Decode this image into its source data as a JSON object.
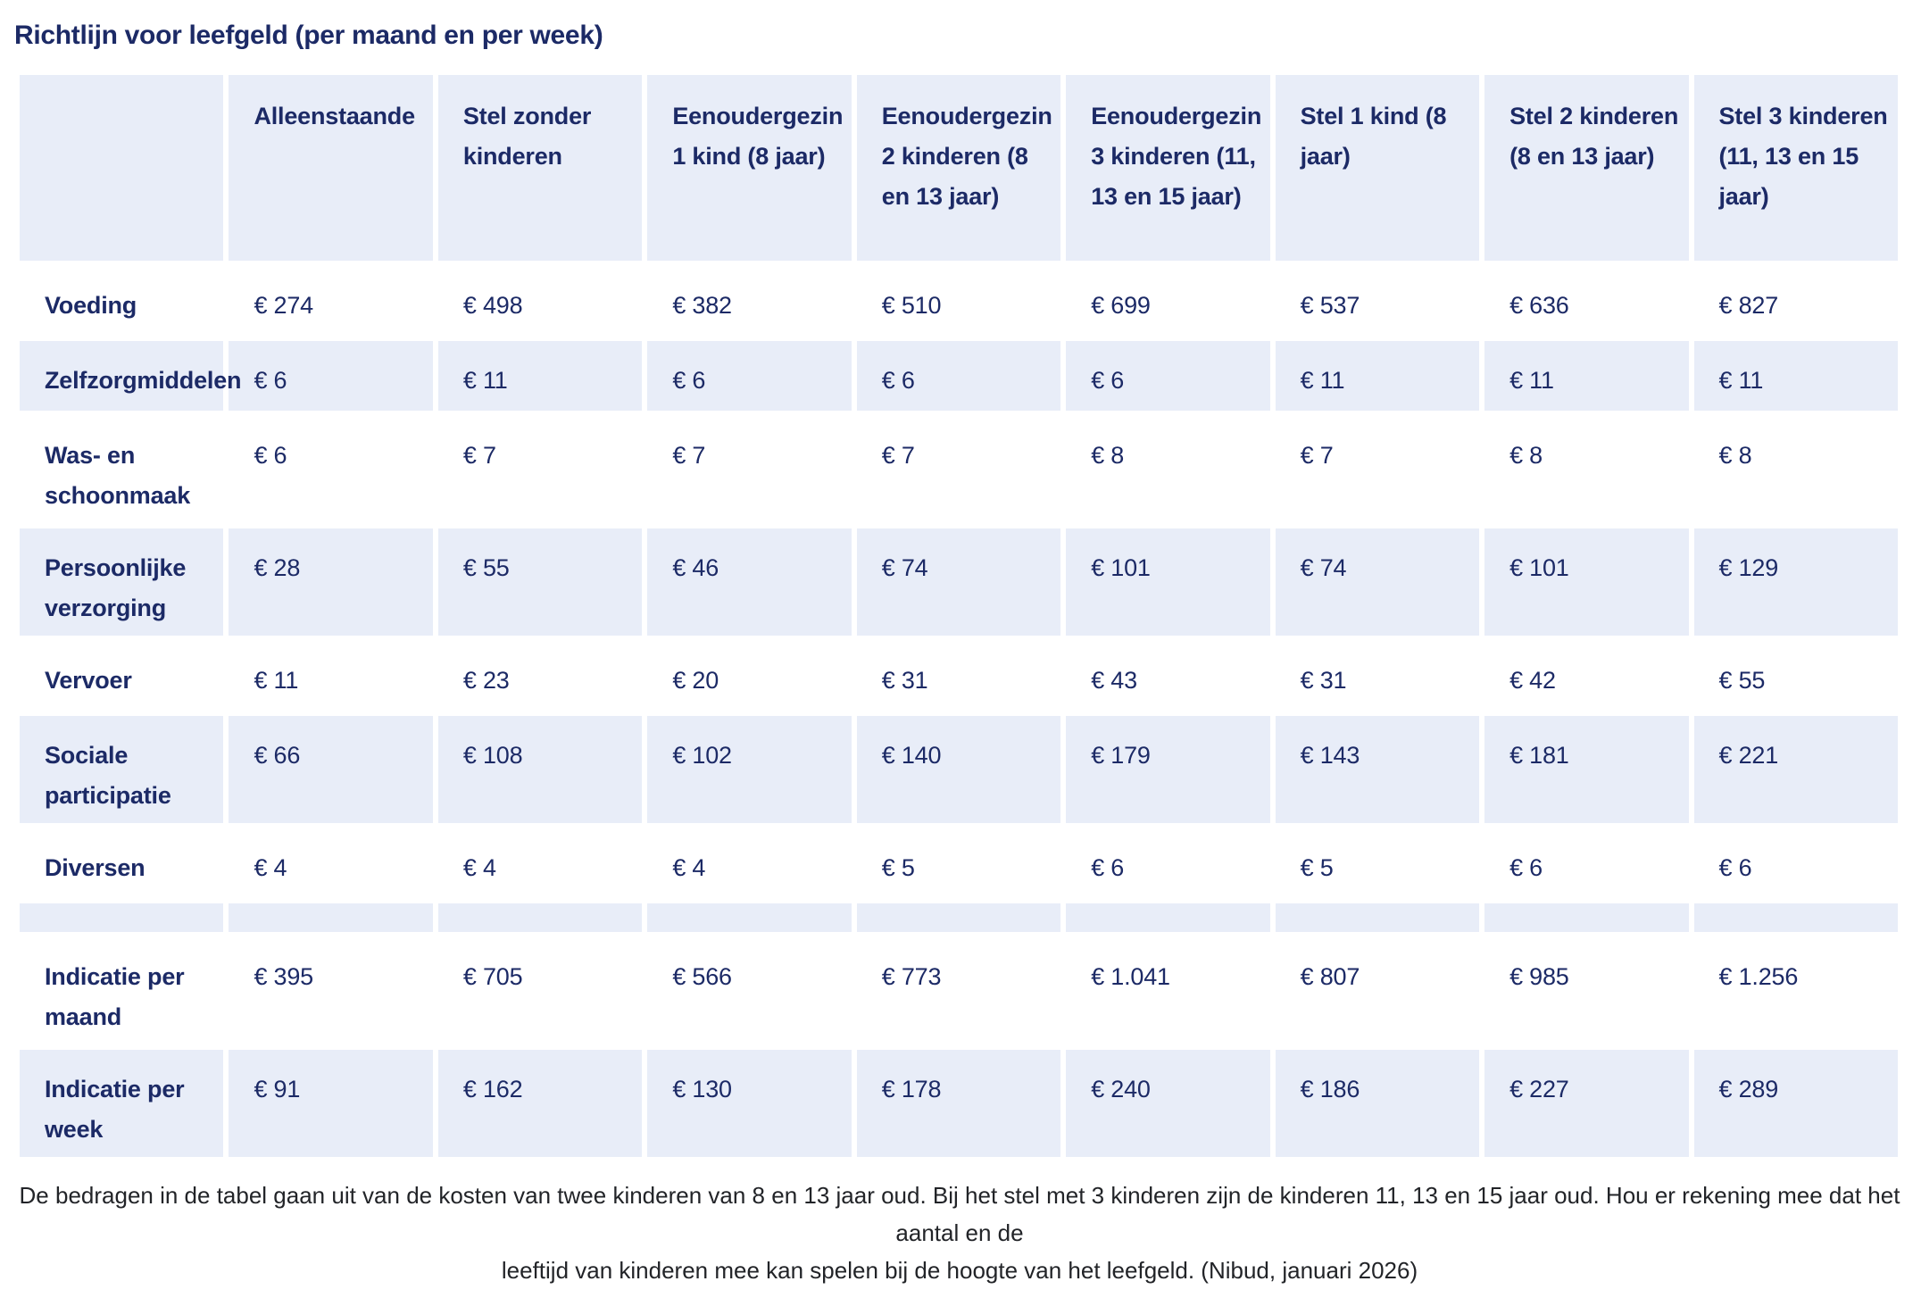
{
  "title": "Richtlijn voor leefgeld (per maand en per week)",
  "colors": {
    "heading_text": "#1c2a66",
    "cell_background": "#e8edf8",
    "footnote_text": "#222428",
    "page_background": "#ffffff"
  },
  "table": {
    "column_headers": [
      "",
      "Alleenstaande",
      "Stel zonder kinderen",
      "Eenoudergezin 1 kind (8 jaar)",
      "Eenoudergezin 2 kinderen (8 en 13 jaar)",
      "Eenoudergezin 3 kinderen (11, 13 en 15 jaar)",
      "Stel 1 kind (8 jaar)",
      "Stel 2 kinderen (8 en 13 jaar)",
      "Stel 3 kinderen (11, 13 en 15 jaar)"
    ],
    "rows": [
      {
        "label": "Voeding",
        "values": [
          "€ 274",
          "€ 498",
          "€ 382",
          "€ 510",
          "€ 699",
          "€ 537",
          "€ 636",
          "€ 827"
        ]
      },
      {
        "label": "Zelfzorgmiddelen",
        "values": [
          "€ 6",
          "€ 11",
          "€ 6",
          "€ 6",
          "€ 6",
          "€ 11",
          "€ 11",
          "€ 11"
        ]
      },
      {
        "label": "Was- en schoonmaak",
        "values": [
          "€ 6",
          "€ 7",
          "€ 7",
          "€ 7",
          "€ 8",
          "€ 7",
          "€ 8",
          "€ 8"
        ]
      },
      {
        "label": "Persoonlijke verzorging",
        "values": [
          "€ 28",
          "€ 55",
          "€ 46",
          "€ 74",
          "€ 101",
          "€ 74",
          "€ 101",
          "€ 129"
        ]
      },
      {
        "label": "Vervoer",
        "values": [
          "€ 11",
          "€ 23",
          "€ 20",
          "€ 31",
          "€ 43",
          "€ 31",
          "€ 42",
          "€ 55"
        ]
      },
      {
        "label": "Sociale participatie",
        "values": [
          "€ 66",
          "€ 108",
          "€ 102",
          "€ 140",
          "€ 179",
          "€ 143",
          "€ 181",
          "€ 221"
        ]
      },
      {
        "label": "Diversen",
        "values": [
          "€ 4",
          "€ 4",
          "€ 4",
          "€ 5",
          "€ 6",
          "€ 5",
          "€ 6",
          "€ 6"
        ]
      },
      {
        "label": "",
        "spacer": true,
        "values": [
          "",
          "",
          "",
          "",
          "",
          "",
          "",
          ""
        ]
      },
      {
        "label": "Indicatie per maand",
        "values": [
          "€ 395",
          "€ 705",
          "€ 566",
          "€ 773",
          "€ 1.041",
          "€ 807",
          "€ 985",
          "€ 1.256"
        ]
      },
      {
        "label": "Indicatie per week",
        "values": [
          "€ 91",
          "€ 162",
          "€ 130",
          "€ 178",
          "€ 240",
          "€ 186",
          "€ 227",
          "€ 289"
        ]
      }
    ]
  },
  "footer": {
    "line1": "De bedragen in de tabel gaan uit van de kosten van twee kinderen van 8 en 13 jaar oud. Bij het stel met 3 kinderen zijn de kinderen 11, 13 en 15 jaar oud. Hou er rekening mee dat het aantal en de",
    "line2": "leeftijd van kinderen mee kan spelen bij de hoogte van het leefgeld. (Nibud, januari 2026)"
  }
}
